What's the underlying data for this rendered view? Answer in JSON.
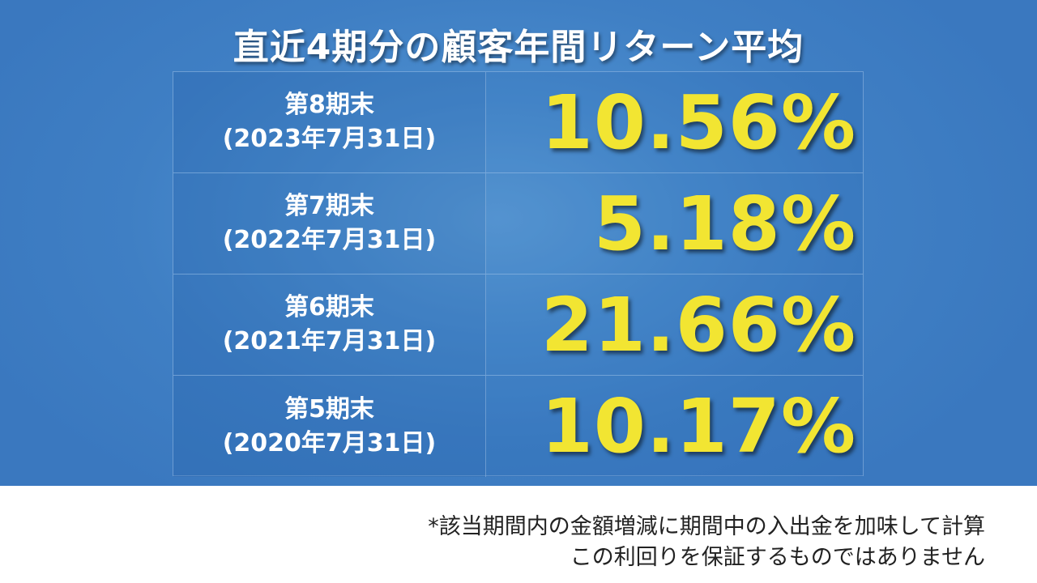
{
  "title": "直近4期分の顧客年間リターン平均",
  "rows": [
    {
      "period": "第8期末",
      "date": "(2023年7月31日)",
      "value": "10.56%"
    },
    {
      "period": "第7期末",
      "date": "(2022年7月31日)",
      "value": "5.18%"
    },
    {
      "period": "第6期末",
      "date": "(2021年7月31日)",
      "value": "21.66%"
    },
    {
      "period": "第5期末",
      "date": "(2020年7月31日)",
      "value": "10.17%"
    }
  ],
  "notes": [
    "*該当期間内の金額増減に期間中の入出金を加味して計算",
    "この利回りを保証するものではありません"
  ],
  "colors": {
    "background_blue": "#3f7fc4",
    "value_yellow": "#f2e532",
    "text_white": "#ffffff",
    "note_text": "#222222"
  }
}
